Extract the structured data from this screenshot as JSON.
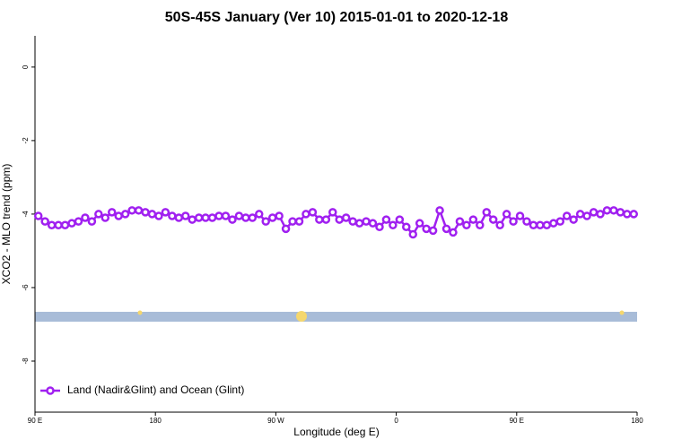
{
  "chart_data": {
    "type": "line",
    "title": "50S-45S January (Ver 10)   2015-01-01 to 2020-12-18",
    "x_label": "Longitude (deg E)",
    "y_label": "XCO2 - MLO trend (ppm)",
    "x": [
      92.5,
      97.5,
      102.5,
      107.5,
      112.5,
      117.5,
      122.5,
      127.5,
      132.5,
      137.5,
      142.5,
      147.5,
      152.5,
      157.5,
      162.5,
      167.5,
      172.5,
      177.5,
      182.5,
      187.5,
      192.5,
      197.5,
      202.5,
      207.5,
      212.5,
      217.5,
      222.5,
      227.5,
      232.5,
      237.5,
      242.5,
      247.5,
      252.5,
      257.5,
      262.5,
      267.5,
      272.5,
      277.5,
      282.5,
      287.5,
      292.5,
      297.5,
      302.5,
      307.5,
      312.5,
      317.5,
      322.5,
      327.5,
      332.5,
      337.5,
      342.5,
      347.5,
      352.5,
      357.5,
      362.5,
      367.5,
      372.5,
      377.5,
      382.5,
      387.5,
      392.5,
      397.5,
      402.5,
      407.5,
      412.5,
      417.5,
      422.5,
      427.5,
      432.5,
      437.5,
      442.5,
      447.5,
      452.5,
      457.5,
      462.5,
      467.5,
      472.5,
      477.5,
      482.5,
      487.5,
      492.5,
      497.5,
      502.5,
      507.5,
      512.5,
      517.5,
      522.5,
      527.5,
      532.5,
      537.5
    ],
    "series": [
      {
        "name": "Land (Nadir&Glint) and Ocean (Glint)",
        "color": "#a020f0",
        "values": [
          -4.05,
          -4.2,
          -4.3,
          -4.3,
          -4.3,
          -4.25,
          -4.2,
          -4.1,
          -4.2,
          -4.0,
          -4.1,
          -3.95,
          -4.05,
          -4.0,
          -3.9,
          -3.9,
          -3.95,
          -4.0,
          -4.05,
          -3.95,
          -4.05,
          -4.1,
          -4.05,
          -4.15,
          -4.1,
          -4.1,
          -4.1,
          -4.05,
          -4.05,
          -4.15,
          -4.05,
          -4.1,
          -4.1,
          -4.0,
          -4.2,
          -4.1,
          -4.05,
          -4.4,
          -4.2,
          -4.2,
          -4.0,
          -3.95,
          -4.15,
          -4.15,
          -3.95,
          -4.15,
          -4.1,
          -4.2,
          -4.25,
          -4.2,
          -4.25,
          -4.35,
          -4.15,
          -4.3,
          -4.15,
          -4.35,
          -4.55,
          -4.25,
          -4.4,
          -4.45,
          -3.9,
          -4.4,
          -4.5,
          -4.2,
          -4.3,
          -4.15,
          -4.3,
          -3.95,
          -4.15,
          -4.3,
          -4.0,
          -4.2,
          -4.05,
          -4.2,
          -4.3,
          -4.3,
          -4.3,
          -4.25,
          -4.2,
          -4.05,
          -4.15,
          -4.0,
          -4.05,
          -3.95,
          -4.0,
          -3.9,
          -3.9,
          -3.95,
          -4.0,
          -4.0
        ]
      }
    ],
    "xlim": [
      90,
      540
    ],
    "xticks": [
      {
        "value": 90,
        "label": "90 E"
      },
      180,
      {
        "value": 270,
        "label": "90 W"
      },
      {
        "value": 360,
        "label": "0"
      },
      {
        "value": 450,
        "label": "90 E"
      },
      {
        "value": 540,
        "label": "180"
      }
    ],
    "ylim": [
      -9.39,
      0.85
    ],
    "yticks": [
      0,
      -2,
      -4,
      -6,
      -8
    ],
    "legend": "bottom-left"
  }
}
